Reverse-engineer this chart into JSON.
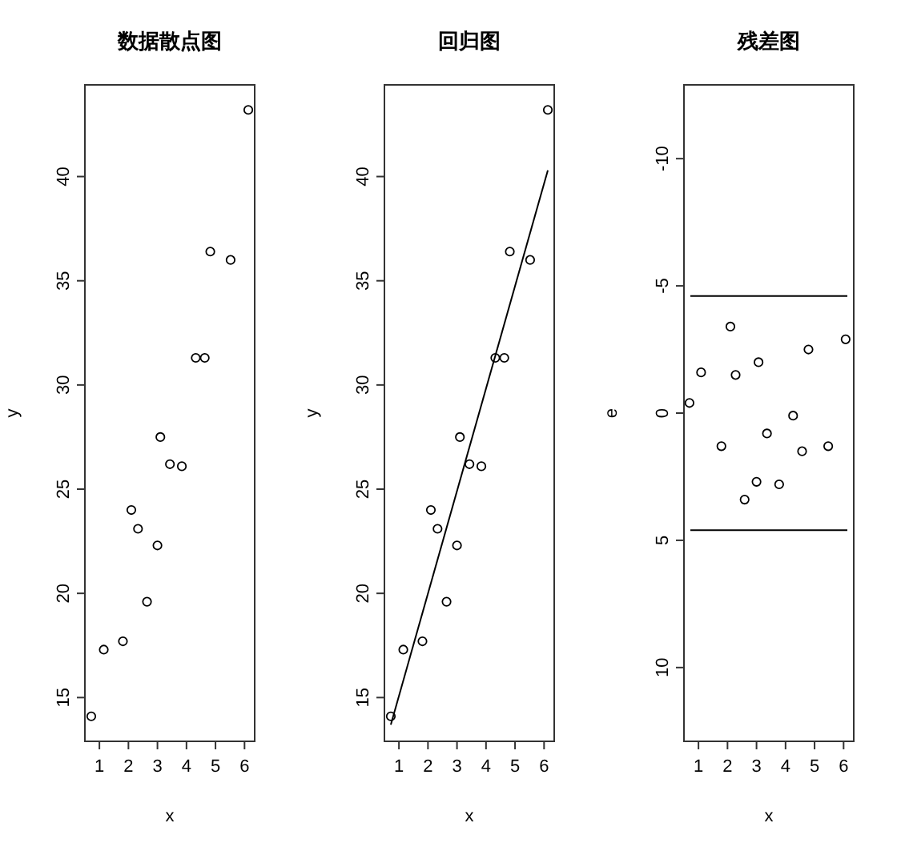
{
  "chart_data": [
    {
      "type": "scatter",
      "title": "数据散点图",
      "xlabel": "x",
      "ylabel": "y",
      "xlim": [
        0.5,
        6.35
      ],
      "ylim": [
        12.9,
        44.4
      ],
      "xticks": [
        1,
        2,
        3,
        4,
        5,
        6
      ],
      "yticks": [
        15,
        20,
        25,
        30,
        35,
        40
      ],
      "marker": "circle",
      "grid": false,
      "series": [
        {
          "type": "scatter",
          "color": "#000000",
          "x": [
            0.72,
            1.15,
            1.81,
            2.1,
            2.33,
            2.64,
            3.0,
            3.1,
            3.43,
            3.84,
            4.32,
            4.63,
            4.82,
            5.52,
            6.13
          ],
          "values": [
            14.1,
            17.3,
            17.7,
            24.0,
            23.1,
            19.6,
            22.3,
            27.5,
            26.2,
            26.1,
            31.3,
            31.3,
            36.4,
            36.0,
            43.2
          ]
        }
      ]
    },
    {
      "type": "scatter",
      "title": "回归图",
      "xlabel": "x",
      "ylabel": "y",
      "xlim": [
        0.5,
        6.35
      ],
      "ylim": [
        12.9,
        44.4
      ],
      "xticks": [
        1,
        2,
        3,
        4,
        5,
        6
      ],
      "yticks": [
        15,
        20,
        25,
        30,
        35,
        40
      ],
      "marker": "circle",
      "grid": false,
      "series": [
        {
          "type": "scatter",
          "color": "#000000",
          "x": [
            0.72,
            1.15,
            1.81,
            2.1,
            2.33,
            2.64,
            3.0,
            3.1,
            3.43,
            3.84,
            4.32,
            4.63,
            4.82,
            5.52,
            6.13
          ],
          "values": [
            14.1,
            17.3,
            17.7,
            24.0,
            23.1,
            19.6,
            22.3,
            27.5,
            26.2,
            26.1,
            31.3,
            31.3,
            36.4,
            36.0,
            43.2
          ]
        },
        {
          "type": "line",
          "color": "#000000",
          "marker": "none",
          "x": [
            0.72,
            6.13
          ],
          "values": [
            13.7,
            40.3
          ]
        }
      ]
    },
    {
      "type": "scatter",
      "title": "残差图",
      "xlabel": "x",
      "ylabel": "e",
      "xlim": [
        0.5,
        6.35
      ],
      "ylim": [
        12.9,
        -12.9
      ],
      "xticks": [
        1,
        2,
        3,
        4,
        5,
        6
      ],
      "yticks": [
        -10,
        -5,
        0,
        5,
        10
      ],
      "marker": "circle",
      "grid": false,
      "ref_lines": [
        {
          "axis": "y",
          "value": -4.6,
          "color": "#000000"
        },
        {
          "axis": "y",
          "value": 4.6,
          "color": "#000000"
        }
      ],
      "series": [
        {
          "type": "scatter",
          "color": "#000000",
          "x": [
            0.69,
            1.09,
            1.79,
            2.1,
            2.28,
            2.59,
            3.0,
            3.07,
            3.36,
            3.78,
            4.26,
            4.57,
            4.79,
            5.47,
            6.07
          ],
          "values": [
            -0.4,
            -1.6,
            1.3,
            -3.4,
            -1.5,
            3.4,
            2.7,
            -2.0,
            0.8,
            2.8,
            0.1,
            1.5,
            -2.5,
            1.3,
            -2.9
          ]
        }
      ]
    }
  ]
}
